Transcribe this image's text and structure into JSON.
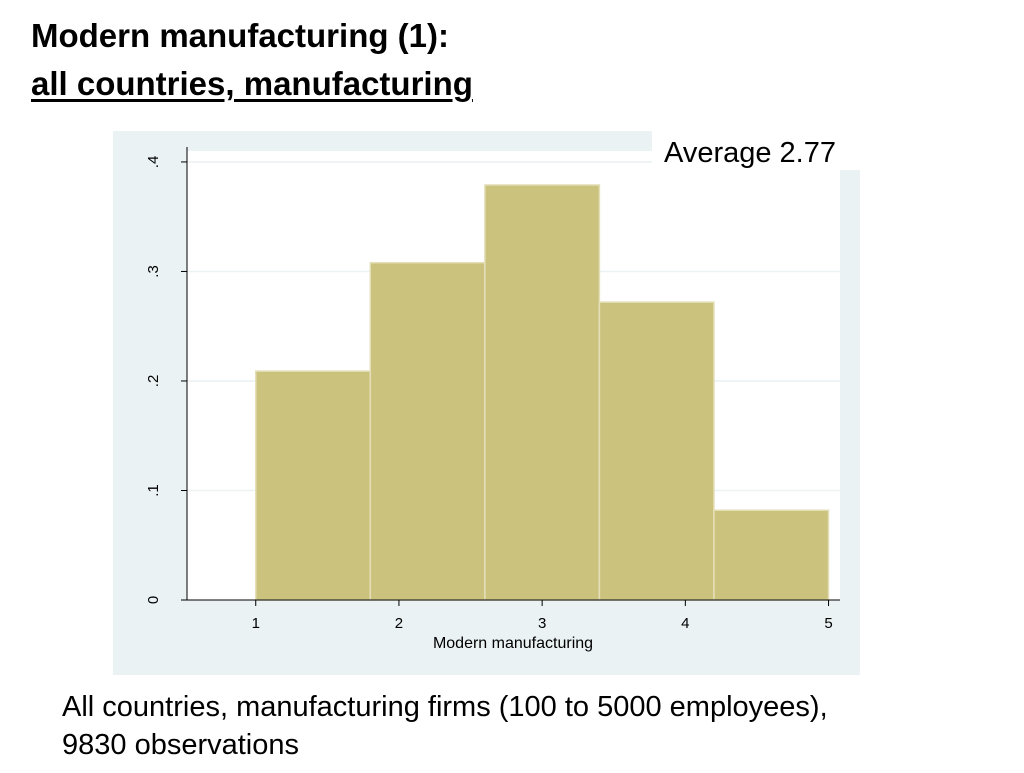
{
  "slide": {
    "title_line1": "Modern manufacturing (1):",
    "title_line2": "all countries, manufacturing",
    "average_label": "Average 2.77",
    "caption_line1": "All countries, manufacturing firms (100 to 5000 employees),",
    "caption_line2": "9830 observations"
  },
  "chart_data": {
    "type": "bar",
    "subtype": "histogram",
    "xlabel": "Modern manufacturing",
    "ylabel": "",
    "bins": [
      {
        "start": 1.0,
        "end": 1.8,
        "value": 0.209
      },
      {
        "start": 1.8,
        "end": 2.6,
        "value": 0.308
      },
      {
        "start": 2.6,
        "end": 3.4,
        "value": 0.379
      },
      {
        "start": 3.4,
        "end": 4.2,
        "value": 0.272
      },
      {
        "start": 4.2,
        "end": 5.0,
        "value": 0.082
      }
    ],
    "xlim": [
      0.52,
      5.08
    ],
    "ylim": [
      0,
      0.41
    ],
    "xticks": [
      1,
      2,
      3,
      4,
      5
    ],
    "xtick_labels": [
      "1",
      "2",
      "3",
      "4",
      "5"
    ],
    "yticks": [
      0,
      0.1,
      0.2,
      0.3,
      0.4
    ],
    "ytick_labels": [
      "0",
      ".1",
      ".2",
      ".3",
      ".4"
    ],
    "grid": true,
    "colors": {
      "bar_fill": "#cbc27d",
      "bar_stroke": "#e4dfb9",
      "plot_region_bg": "#eaf2f3",
      "plot_area_bg": "#ffffff",
      "gridline": "#eaf2f3",
      "axis": "#000000"
    }
  }
}
